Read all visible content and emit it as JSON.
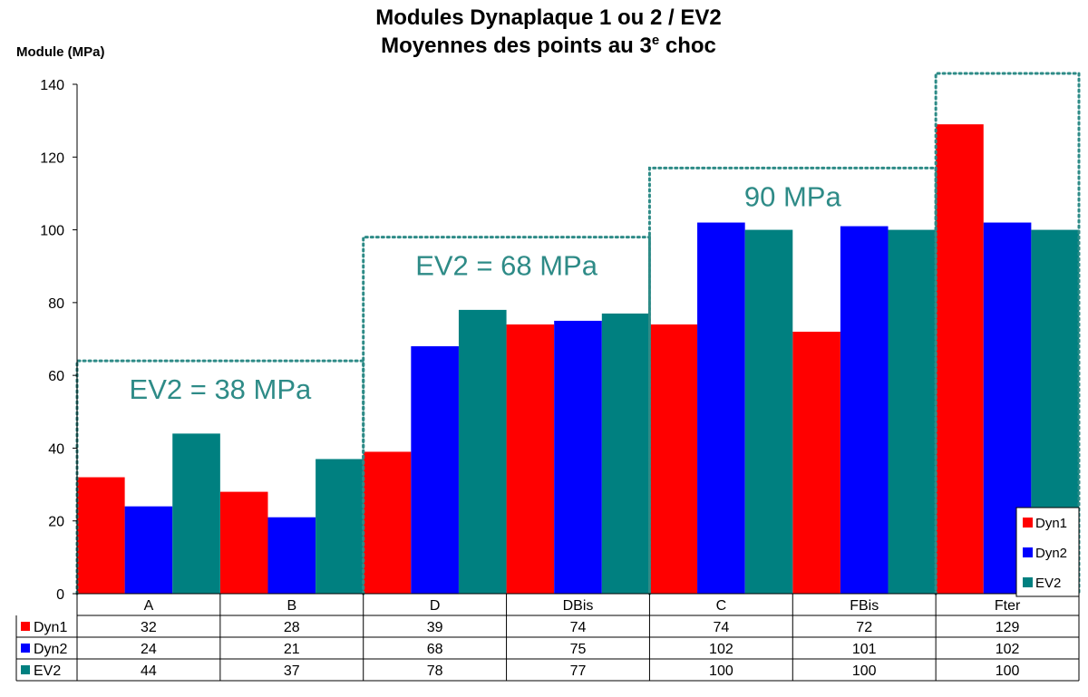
{
  "chart_data": {
    "type": "bar",
    "title_line1": "Modules Dynaplaque 1 ou 2 / EV2",
    "title_line2_pre": "Moyennes des points au 3",
    "title_line2_sup": "e",
    "title_line2_post": " choc",
    "ylabel": "Module (MPa)",
    "ylim": [
      0,
      140
    ],
    "yticks": [
      "0",
      "20",
      "40",
      "60",
      "80",
      "100",
      "120",
      "140"
    ],
    "categories": [
      "A",
      "B",
      "D",
      "DBis",
      "C",
      "FBis",
      "Fter"
    ],
    "series": [
      {
        "name": "Dyn1",
        "color": "#ff0000",
        "values": [
          32,
          28,
          39,
          74,
          74,
          72,
          129
        ]
      },
      {
        "name": "Dyn2",
        "color": "#0000ff",
        "values": [
          24,
          21,
          68,
          75,
          102,
          101,
          102
        ]
      },
      {
        "name": "EV2",
        "color": "#008080",
        "values": [
          44,
          37,
          78,
          77,
          100,
          100,
          100
        ]
      }
    ],
    "legend_position": "bottom-right",
    "data_table": true,
    "annotations": [
      {
        "text": "EV2 = 38 MPa",
        "color": "#2e8b87",
        "from": 0,
        "to": 1,
        "level": 64
      },
      {
        "text": "EV2 = 68 MPa",
        "color": "#2e8b87",
        "from": 2,
        "to": 3,
        "level": 98
      },
      {
        "text": "90 MPa",
        "color": "#2e8b87",
        "from": 4,
        "to": 5,
        "level": 117
      },
      {
        "text": "",
        "color": "#2e8b87",
        "from": 6,
        "to": 6,
        "level": 143
      }
    ]
  }
}
